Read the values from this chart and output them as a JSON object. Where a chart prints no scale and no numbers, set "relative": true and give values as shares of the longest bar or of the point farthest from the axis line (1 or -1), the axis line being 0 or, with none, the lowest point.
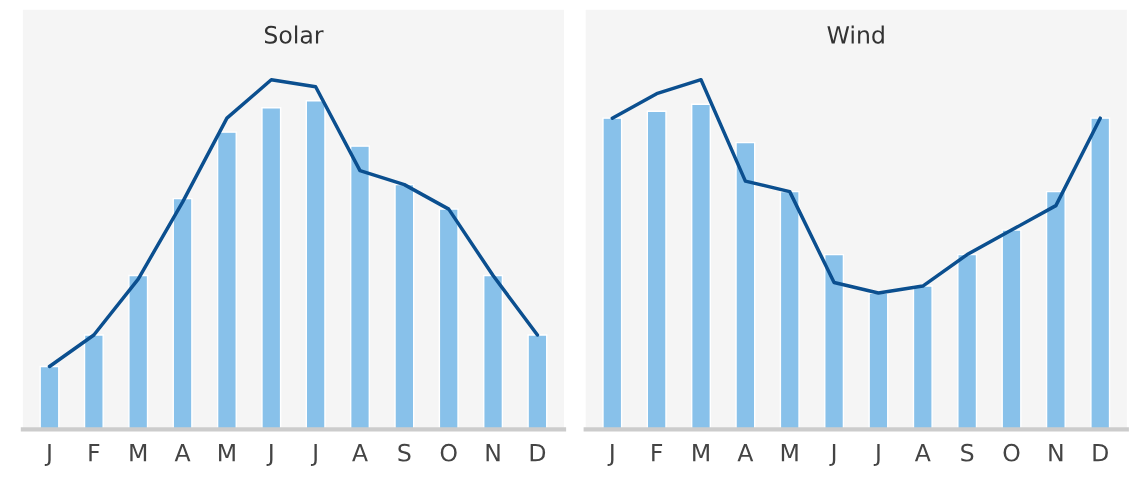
{
  "chart_data": [
    {
      "type": "bar",
      "title": "Solar",
      "relative": true,
      "categories": [
        "J",
        "F",
        "M",
        "A",
        "M",
        "J",
        "J",
        "A",
        "S",
        "O",
        "N",
        "D"
      ],
      "series": [
        {
          "color": "#88c1ea",
          "values": [
            0.18,
            0.27,
            0.44,
            0.66,
            0.85,
            0.92,
            0.94,
            0.81,
            0.7,
            0.63,
            0.44,
            0.27
          ]
        },
        {
          "type": "line",
          "color": "#0b4f8f",
          "values": [
            0.18,
            0.27,
            0.43,
            0.65,
            0.89,
            1.0,
            0.98,
            0.74,
            0.7,
            0.63,
            0.44,
            0.27
          ]
        }
      ],
      "grid": false,
      "legend": false
    },
    {
      "type": "bar",
      "title": "Wind",
      "relative": true,
      "categories": [
        "J",
        "F",
        "M",
        "A",
        "M",
        "J",
        "J",
        "A",
        "S",
        "O",
        "N",
        "D"
      ],
      "series": [
        {
          "color": "#88c1ea",
          "values": [
            0.89,
            0.91,
            0.93,
            0.82,
            0.68,
            0.5,
            0.39,
            0.41,
            0.5,
            0.57,
            0.68,
            0.89
          ]
        },
        {
          "type": "line",
          "color": "#0b4f8f",
          "values": [
            0.89,
            0.96,
            1.0,
            0.71,
            0.68,
            0.42,
            0.39,
            0.41,
            0.5,
            0.57,
            0.64,
            0.89
          ]
        }
      ],
      "grid": false,
      "legend": false
    }
  ]
}
